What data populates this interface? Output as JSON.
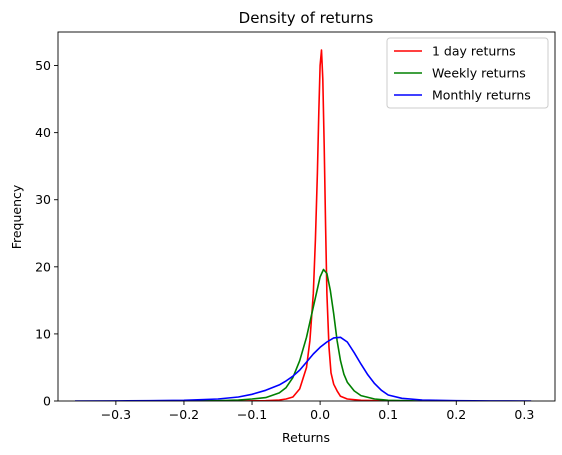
{
  "chart_data": {
    "type": "line",
    "title": "Density of returns",
    "xlabel": "Returns",
    "ylabel": "Frequency",
    "xlim": [
      -0.385,
      0.345
    ],
    "ylim": [
      0,
      55
    ],
    "xticks": [
      -0.3,
      -0.2,
      -0.1,
      0.0,
      0.1,
      0.2,
      0.3
    ],
    "xtick_labels": [
      "−0.3",
      "−0.2",
      "−0.1",
      "0.0",
      "0.1",
      "0.2",
      "0.3"
    ],
    "yticks": [
      0,
      10,
      20,
      30,
      40,
      50
    ],
    "ytick_labels": [
      "0",
      "10",
      "20",
      "30",
      "40",
      "50"
    ],
    "grid": false,
    "legend_position": "top-right",
    "series": [
      {
        "name": "1 day returns",
        "color": "#ff0000",
        "points": [
          [
            -0.12,
            0
          ],
          [
            -0.08,
            0.05
          ],
          [
            -0.06,
            0.15
          ],
          [
            -0.05,
            0.3
          ],
          [
            -0.04,
            0.6
          ],
          [
            -0.03,
            1.8
          ],
          [
            -0.02,
            5
          ],
          [
            -0.015,
            9
          ],
          [
            -0.01,
            16
          ],
          [
            -0.007,
            24
          ],
          [
            -0.004,
            34
          ],
          [
            -0.002,
            43
          ],
          [
            0.0,
            50
          ],
          [
            0.002,
            52.3
          ],
          [
            0.004,
            48
          ],
          [
            0.006,
            38
          ],
          [
            0.008,
            26
          ],
          [
            0.01,
            16
          ],
          [
            0.013,
            8
          ],
          [
            0.016,
            4.2
          ],
          [
            0.02,
            2.5
          ],
          [
            0.025,
            1.5
          ],
          [
            0.03,
            0.7
          ],
          [
            0.04,
            0.3
          ],
          [
            0.06,
            0.1
          ],
          [
            0.1,
            0
          ]
        ]
      },
      {
        "name": "Weekly returns",
        "color": "#008000",
        "points": [
          [
            -0.25,
            0
          ],
          [
            -0.15,
            0.05
          ],
          [
            -0.12,
            0.15
          ],
          [
            -0.1,
            0.3
          ],
          [
            -0.08,
            0.5
          ],
          [
            -0.06,
            1.2
          ],
          [
            -0.05,
            2.0
          ],
          [
            -0.04,
            3.5
          ],
          [
            -0.03,
            6
          ],
          [
            -0.02,
            9.5
          ],
          [
            -0.01,
            14
          ],
          [
            0.0,
            18.5
          ],
          [
            0.005,
            19.6
          ],
          [
            0.01,
            19
          ],
          [
            0.015,
            16.5
          ],
          [
            0.02,
            13
          ],
          [
            0.025,
            9
          ],
          [
            0.03,
            6
          ],
          [
            0.035,
            4
          ],
          [
            0.04,
            2.8
          ],
          [
            0.05,
            1.5
          ],
          [
            0.06,
            0.8
          ],
          [
            0.08,
            0.3
          ],
          [
            0.1,
            0.1
          ],
          [
            0.15,
            0
          ]
        ]
      },
      {
        "name": "Monthly returns",
        "color": "#0000ff",
        "points": [
          [
            -0.36,
            0
          ],
          [
            -0.3,
            0.02
          ],
          [
            -0.25,
            0.05
          ],
          [
            -0.2,
            0.1
          ],
          [
            -0.15,
            0.3
          ],
          [
            -0.12,
            0.6
          ],
          [
            -0.1,
            1.0
          ],
          [
            -0.08,
            1.6
          ],
          [
            -0.06,
            2.4
          ],
          [
            -0.05,
            3.0
          ],
          [
            -0.04,
            3.7
          ],
          [
            -0.03,
            4.6
          ],
          [
            -0.02,
            5.8
          ],
          [
            -0.01,
            7.0
          ],
          [
            0.0,
            8.0
          ],
          [
            0.01,
            8.8
          ],
          [
            0.02,
            9.4
          ],
          [
            0.03,
            9.5
          ],
          [
            0.04,
            8.8
          ],
          [
            0.05,
            7.2
          ],
          [
            0.06,
            5.5
          ],
          [
            0.07,
            3.9
          ],
          [
            0.08,
            2.6
          ],
          [
            0.09,
            1.6
          ],
          [
            0.1,
            0.9
          ],
          [
            0.12,
            0.4
          ],
          [
            0.15,
            0.15
          ],
          [
            0.2,
            0.05
          ],
          [
            0.25,
            0.02
          ],
          [
            0.31,
            0
          ]
        ]
      }
    ]
  }
}
